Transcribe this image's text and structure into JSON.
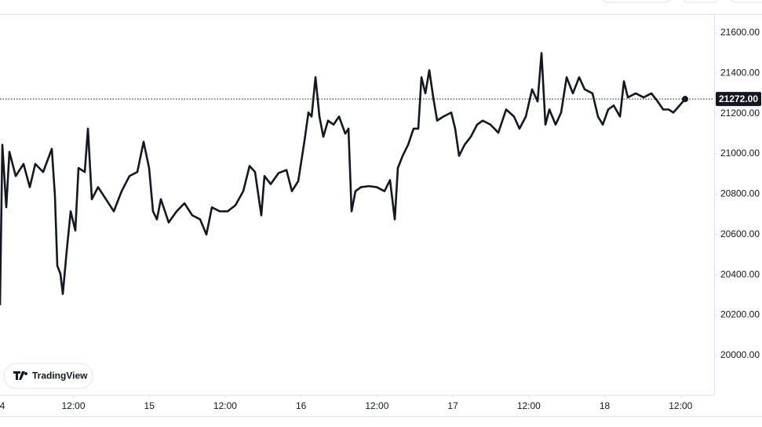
{
  "chart_data": {
    "type": "line",
    "brand": "TradingView",
    "x": [
      0.4,
      0.77,
      1.39,
      1.89,
      2.88,
      4.12,
      5.11,
      5.98,
      7.22,
      8.59,
      9.08,
      9.46,
      9.95,
      10.33,
      10.95,
      11.57,
      12.31,
      12.81,
      13.8,
      14.3,
      14.92,
      15.91,
      17.15,
      18.39,
      19.63,
      20.87,
      22.11,
      23.1,
      23.97,
      24.59,
      25.21,
      25.83,
      27.07,
      28.32,
      29.56,
      30.8,
      32.04,
      33.03,
      33.9,
      35.14,
      36.38,
      37.62,
      38.86,
      39.85,
      40.72,
      41.71,
      42.21,
      43.2,
      44.45,
      45.69,
      46.55,
      47.55,
      48.54,
      49.16,
      49.66,
      50.28,
      50.9,
      51.52,
      52.26,
      53.13,
      54.0,
      54.99,
      55.49,
      55.98,
      56.6,
      57.47,
      58.71,
      59.95,
      61.19,
      62.06,
      62.81,
      63.3,
      64.05,
      64.92,
      65.78,
      66.53,
      67.03,
      67.65,
      68.27,
      68.89,
      69.51,
      70.5,
      71.74,
      72.36,
      72.98,
      73.85,
      74.84,
      75.83,
      76.7,
      77.94,
      79.18,
      80.42,
      81.66,
      82.53,
      83.53,
      84.52,
      85.39,
      86.01,
      86.63,
      87.25,
      88.24,
      89.11,
      89.98,
      90.97,
      91.96,
      92.83,
      94.07,
      94.94,
      95.69,
      96.55,
      97.42,
      98.42,
      99.04,
      99.66,
      100.9,
      102.14,
      103.38,
      104.37,
      105.24,
      106.11,
      106.85,
      107.84,
      108.71
    ],
    "values": [
      20250,
      21045,
      20735,
      21010,
      20890,
      20950,
      20835,
      20950,
      20910,
      21025,
      20795,
      20445,
      20405,
      20305,
      20520,
      20715,
      20620,
      20930,
      20910,
      21125,
      20775,
      20835,
      20775,
      20715,
      20815,
      20890,
      20910,
      21060,
      20930,
      20715,
      20675,
      20775,
      20660,
      20715,
      20755,
      20695,
      20675,
      20600,
      20735,
      20715,
      20715,
      20745,
      20815,
      20940,
      20910,
      20695,
      20890,
      20850,
      20905,
      20920,
      20815,
      20865,
      21065,
      21205,
      21185,
      21380,
      21185,
      21085,
      21165,
      21145,
      21185,
      21100,
      21125,
      20715,
      20815,
      20835,
      20840,
      20835,
      20815,
      20870,
      20675,
      20930,
      20990,
      21045,
      21125,
      21125,
      21380,
      21300,
      21415,
      21280,
      21165,
      21185,
      21205,
      21125,
      20990,
      21045,
      21085,
      21145,
      21165,
      21145,
      21105,
      21220,
      21185,
      21125,
      21185,
      21320,
      21260,
      21500,
      21145,
      21220,
      21145,
      21205,
      21380,
      21300,
      21380,
      21320,
      21300,
      21185,
      21145,
      21220,
      21240,
      21185,
      21360,
      21280,
      21300,
      21280,
      21300,
      21260,
      21220,
      21220,
      21205,
      21240,
      21272
    ],
    "color": "#131722",
    "last_price": {
      "value": 21272,
      "label": "21272.00"
    },
    "xlim": [
      0.4,
      113.3
    ],
    "xticks": [
      {
        "value": 0,
        "label": "4"
      },
      {
        "value": 12,
        "label": "12:00"
      },
      {
        "value": 24,
        "label": "15"
      },
      {
        "value": 36,
        "label": "12:00"
      },
      {
        "value": 48,
        "label": "16"
      },
      {
        "value": 60,
        "label": "12:00"
      },
      {
        "value": 72,
        "label": "17"
      },
      {
        "value": 84,
        "label": "12:00"
      },
      {
        "value": 96,
        "label": "18"
      },
      {
        "value": 108,
        "label": "12:00"
      }
    ],
    "ylim": [
      19805,
      21693
    ],
    "yticks": [
      {
        "value": 20000,
        "label": "20000.00"
      },
      {
        "value": 20200,
        "label": "20200.00"
      },
      {
        "value": 20400,
        "label": "20400.00"
      },
      {
        "value": 20600,
        "label": "20600.00"
      },
      {
        "value": 20800,
        "label": "20800.00"
      },
      {
        "value": 21000,
        "label": "21000.00"
      },
      {
        "value": 21200,
        "label": "21200.00"
      },
      {
        "value": 21400,
        "label": "21400.00"
      },
      {
        "value": 21600,
        "label": "21600.00"
      }
    ],
    "grid": false
  }
}
